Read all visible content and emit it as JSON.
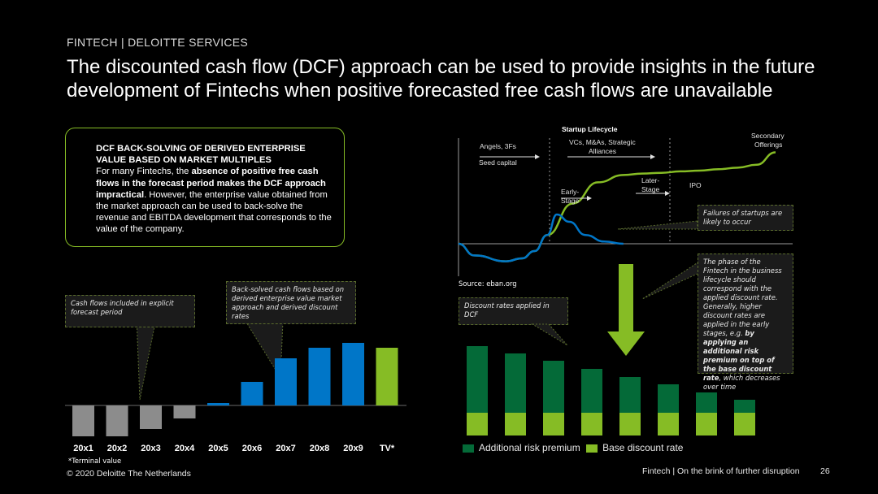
{
  "header": {
    "section": "FINTECH | DELOITTE SERVICES",
    "title": "The discounted cash flow (DCF) approach can be used to provide insights in the future development of Fintechs when positive forecasted free cash flows are unavailable"
  },
  "callout": {
    "heading": "DCF BACK-SOLVING OF DERIVED ENTERPRISE VALUE BASED ON MARKET MULTIPLES",
    "text_1": "For many Fintechs, the ",
    "bold_1": "absence of positive free cash flows in the forecast period makes the DCF approach impractical",
    "text_2": ". However, the enterprise value obtained from the market approach can be used to back-solve the revenue and EBITDA development that corresponds to the value of the company."
  },
  "cashflow_chart": {
    "note_explicit": "Cash flows included in explicit forecast period",
    "note_backsolved": "Back-solved cash flows based on derived enterprise value market approach and derived discount rates",
    "footnote": "*Terminal value",
    "colors": {
      "negative": "#8c8c8c",
      "positive": "#0076c8",
      "terminal": "#86bc25"
    }
  },
  "lifecycle": {
    "title": "Startup Lifecycle",
    "angels": "Angels, 3Fs",
    "seed": "Seed capital",
    "vcs_line1": "VCs, M&As, Strategic",
    "vcs_line2": "Alliances",
    "early_line1": "Early-",
    "early_line2": "Stage",
    "later_line1": "Later-",
    "later_line2": "Stage",
    "ipo": "IPO",
    "secondary_line1": "Secondary",
    "secondary_line2": "Offerings",
    "failures_note": "Failures of startups are likely to occur",
    "source": "Source: eban.org",
    "colors": {
      "green": "#86bc25",
      "blue": "#0076c8"
    }
  },
  "phase_note": {
    "text_1": "The phase of the Fintech in the business lifecycle should correspond with the applied discount rate. Generally, higher discount rates are applied in the early stages, e.g. ",
    "bold_1": "by applying an additional risk premium on top of the base discount rate",
    "text_2": ", which decreases over time"
  },
  "discount_chart": {
    "note": "Discount rates applied in DCF",
    "legend_risk": "Additional risk premium",
    "legend_base": "Base discount rate",
    "colors": {
      "risk": "#046a38",
      "base": "#86bc25"
    }
  },
  "chart_data": [
    {
      "type": "bar",
      "categories": [
        "20x1",
        "20x2",
        "20x3",
        "20x4",
        "20x5",
        "20x6",
        "20x7",
        "20x8",
        "20x9",
        "TV*"
      ],
      "values": [
        -38,
        -38,
        -29,
        -16,
        3,
        29,
        58,
        71,
        77,
        71
      ],
      "title": "",
      "xlabel": "",
      "ylabel": "",
      "ylim": [
        -40,
        80
      ],
      "grid": false
    },
    {
      "type": "bar",
      "stacked": true,
      "categories": [
        "",
        "",
        "",
        "",
        "",
        "",
        "",
        ""
      ],
      "series": [
        {
          "name": "Base discount rate",
          "values": [
            28,
            28,
            28,
            28,
            28,
            28,
            28,
            28
          ]
        },
        {
          "name": "Additional risk premium",
          "values": [
            82,
            73,
            64,
            54,
            44,
            35,
            25,
            16
          ]
        }
      ],
      "ylim": [
        0,
        110
      ],
      "legend": "bottom",
      "grid": false
    },
    {
      "type": "line",
      "series": [
        {
          "name": "",
          "x": [
            0,
            5,
            15,
            20,
            24,
            28,
            36,
            44,
            52,
            58,
            64,
            70,
            76,
            82,
            88,
            94,
            100
          ],
          "y": [
            0,
            -16,
            -24,
            -20,
            -10,
            12,
            55,
            84,
            94,
            96,
            97,
            99,
            100,
            102,
            104,
            108,
            125
          ]
        },
        {
          "name": "",
          "x": [
            0,
            5,
            15,
            20,
            24,
            28,
            31,
            35,
            40,
            46,
            52
          ],
          "y": [
            0,
            -16,
            -24,
            -20,
            -10,
            12,
            40,
            30,
            12,
            3,
            0
          ]
        }
      ],
      "ylim": [
        -30,
        130
      ],
      "grid": false
    }
  ]
}
